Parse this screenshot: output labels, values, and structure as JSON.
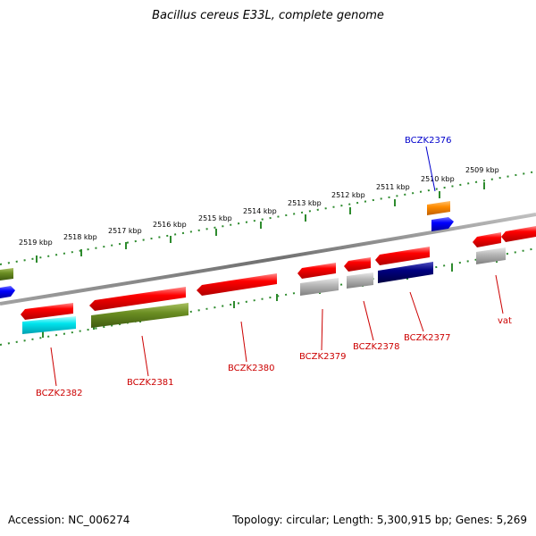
{
  "title": "Bacillus cereus E33L, complete genome",
  "footer": {
    "accession": "Accession: NC_006274",
    "summary": "Topology: circular; Length: 5,300,915 bp; Genes: 5,269"
  },
  "colors": {
    "cds_forward": "#ff0000",
    "cds_reverse": "#ff0000",
    "backbone": "#808080",
    "ruler": "#2e8b2e",
    "label_red": "#cc0000",
    "label_blue": "#0000cc",
    "olive": "#6b8e23",
    "cyan": "#00e5ee",
    "navy": "#000080",
    "grey": "#b0b0b0",
    "orange": "#ff8c00",
    "blue": "#0000ff"
  },
  "ruler_labels": [
    "2519 kbp",
    "2518 kbp",
    "2517 kbp",
    "2516 kbp",
    "2515 kbp",
    "2514 kbp",
    "2513 kbp",
    "2512 kbp",
    "2511 kbp",
    "2510 kbp",
    "2509 kbp"
  ],
  "gene_labels": [
    "BCZK2382",
    "BCZK2381",
    "BCZK2380",
    "BCZK2379",
    "BCZK2378",
    "BCZK2377",
    "vat",
    "BCZK2376"
  ]
}
